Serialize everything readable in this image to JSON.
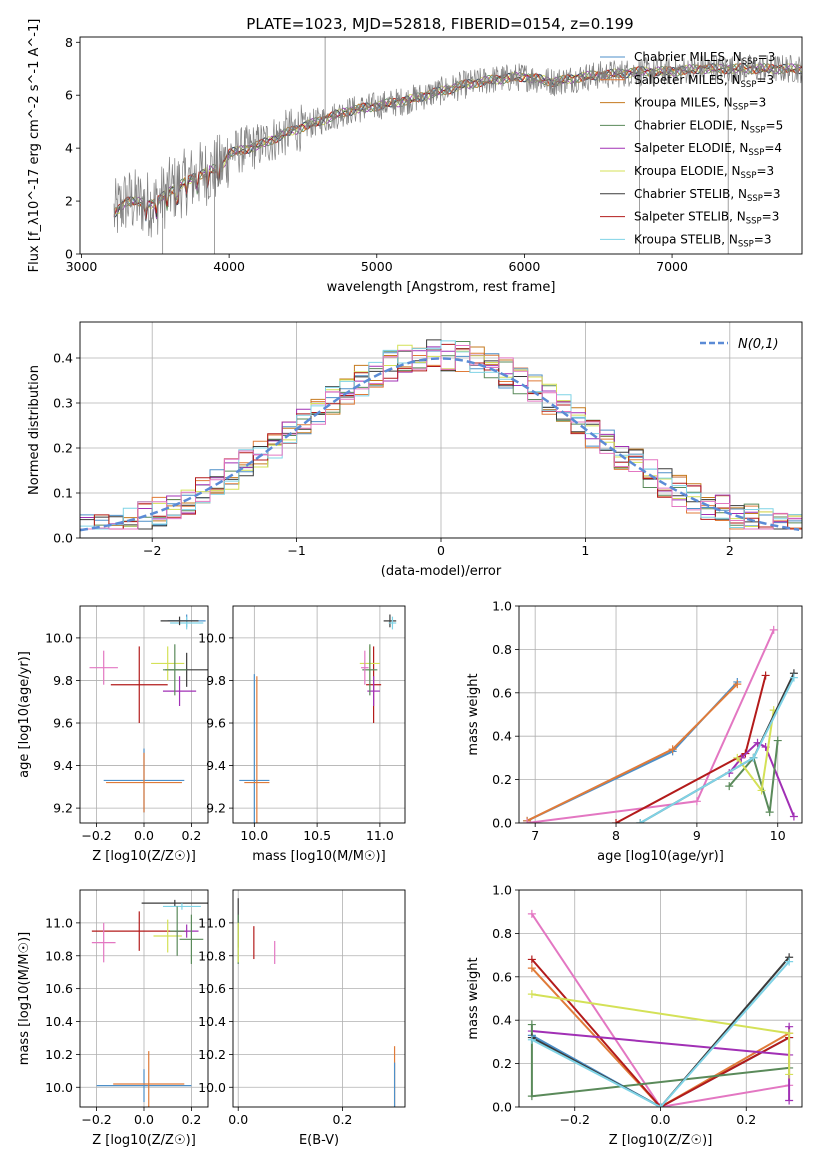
{
  "figure": {
    "title": "PLATE=1023, MJD=52818, FIBERID=0154, z=0.199"
  },
  "series": [
    {
      "name": "Chabrier MILES, N",
      "nssp": "=3",
      "color": "#4d8fc8"
    },
    {
      "name": "Salpeter MILES, N",
      "nssp": "=3",
      "color": "#e07b39"
    },
    {
      "name": "Kroupa MILES, N",
      "nssp": "=3",
      "color": "#c57a1f"
    },
    {
      "name": "Chabrier ELODIE, N",
      "nssp": "=5",
      "color": "#5a8a5a"
    },
    {
      "name": "Salpeter ELODIE, N",
      "nssp": "=4",
      "color": "#a130b5"
    },
    {
      "name": "Kroupa ELODIE, N",
      "nssp": "=3",
      "color": "#d4e157"
    },
    {
      "name": "Chabrier STELIB, N",
      "nssp": "=3",
      "color": "#3a3a3a"
    },
    {
      "name": "Salpeter STELIB, N",
      "nssp": "=3",
      "color": "#b31b1b"
    },
    {
      "name": "Kroupa STELIB, N",
      "nssp": "=3",
      "color": "#7fd3e6"
    }
  ],
  "chart_data": [
    {
      "id": "spectrum",
      "type": "line",
      "xlabel": "wavelength [Angstrom, rest frame]",
      "ylabel": "Flux [f_λ10^-17 erg cm^-2 s^-1 A^-1]",
      "xlim": [
        2990,
        7880
      ],
      "ylim": [
        0,
        8.2
      ],
      "xticks": [
        3000,
        4000,
        5000,
        6000,
        7000
      ],
      "yticks": [
        0,
        2,
        4,
        6,
        8
      ],
      "grid": false,
      "legend": "right",
      "data_color": "#808080",
      "anchors": [
        [
          3220,
          1.5
        ],
        [
          3300,
          2.0
        ],
        [
          3500,
          1.9
        ],
        [
          3600,
          2.4
        ],
        [
          3800,
          3.0
        ],
        [
          3950,
          3.3
        ],
        [
          4000,
          3.8
        ],
        [
          4200,
          4.1
        ],
        [
          4400,
          4.6
        ],
        [
          4600,
          5.0
        ],
        [
          4800,
          5.4
        ],
        [
          5000,
          5.6
        ],
        [
          5200,
          5.8
        ],
        [
          5400,
          6.1
        ],
        [
          5600,
          6.4
        ],
        [
          5800,
          6.6
        ],
        [
          6000,
          6.7
        ],
        [
          6200,
          6.5
        ],
        [
          6400,
          6.7
        ],
        [
          6600,
          6.8
        ],
        [
          6800,
          6.9
        ],
        [
          7000,
          6.9
        ],
        [
          7200,
          7.0
        ],
        [
          7400,
          7.0
        ],
        [
          7880,
          7.0
        ]
      ]
    },
    {
      "id": "residuals",
      "type": "histogram",
      "xlabel": "(data-model)/error",
      "ylabel": "Normed distribution",
      "xlim": [
        -2.5,
        2.5
      ],
      "ylim": [
        0,
        0.48
      ],
      "xticks": [
        -2,
        -1,
        0,
        1,
        2
      ],
      "yticks": [
        0.0,
        0.1,
        0.2,
        0.3,
        0.4
      ],
      "grid": true,
      "legend": "top-right",
      "bin_width": 0.1,
      "ref_label": "N(0,1)",
      "ref_color": "#5b8bd6"
    },
    {
      "id": "age_vs_Z",
      "type": "errorbar",
      "xlabel": "Z [log10(Z/Z☉)]",
      "ylabel": "age [log10(age/yr)]",
      "xlim": [
        -0.27,
        0.27
      ],
      "ylim": [
        9.13,
        10.15
      ],
      "xticks": [
        -0.2,
        0.0,
        0.2
      ],
      "yticks": [
        9.2,
        9.4,
        9.6,
        9.8,
        10.0
      ],
      "grid": true,
      "points": [
        {
          "s": 0,
          "x": 0.0,
          "y": 9.33,
          "xe": 0.17,
          "ye": 0.15
        },
        {
          "s": 1,
          "x": 0.0,
          "y": 9.32,
          "xe": 0.16,
          "ye": 0.14
        },
        {
          "s": 0,
          "x": 0.18,
          "y": 10.08,
          "xe": 0.08,
          "ye": 0.03
        },
        {
          "s": 8,
          "x": 0.18,
          "y": 10.07,
          "xe": 0.07,
          "ye": 0.03
        },
        {
          "s": 6,
          "x": 0.15,
          "y": 10.08,
          "xe": 0.08,
          "ye": 0.02
        },
        {
          "s": 7,
          "x": -0.02,
          "y": 9.78,
          "xe": 0.12,
          "ye": 0.18
        },
        {
          "s": 4,
          "x": 0.15,
          "y": 9.75,
          "xe": 0.07,
          "ye": 0.07
        },
        {
          "s": 6,
          "x": 0.18,
          "y": 9.85,
          "xe": 0.09,
          "ye": 0.08
        },
        {
          "s": 5,
          "x": 0.1,
          "y": 9.88,
          "xe": 0.07,
          "ye": 0.08
        },
        {
          "s": 3,
          "x": 0.13,
          "y": 9.85,
          "xe": 0.05,
          "ye": 0.12
        },
        {
          "s": "pink",
          "x": -0.17,
          "y": 9.86,
          "xe": 0.06,
          "ye": 0.08
        }
      ]
    },
    {
      "id": "age_vs_mass",
      "type": "errorbar",
      "xlabel": "mass [log10(M/M☉)]",
      "ylabel": "",
      "xlim": [
        9.83,
        11.2
      ],
      "ylim": [
        9.13,
        10.15
      ],
      "xticks": [
        10.0,
        10.5,
        11.0
      ],
      "yticks": [
        9.2,
        9.4,
        9.6,
        9.8,
        10.0
      ],
      "grid": true,
      "points": [
        {
          "s": 0,
          "x": 10.0,
          "y": 9.33,
          "xe": 0.12,
          "ye": 0.5
        },
        {
          "s": 1,
          "x": 10.02,
          "y": 9.32,
          "xe": 0.1,
          "ye": 0.5
        },
        {
          "s": 6,
          "x": 11.08,
          "y": 10.08,
          "xe": 0.05,
          "ye": 0.03
        },
        {
          "s": 8,
          "x": 11.1,
          "y": 10.07,
          "xe": 0.03,
          "ye": 0.03
        },
        {
          "s": 7,
          "x": 10.95,
          "y": 9.78,
          "xe": 0.06,
          "ye": 0.18
        },
        {
          "s": 4,
          "x": 10.95,
          "y": 9.75,
          "xe": 0.05,
          "ye": 0.07
        },
        {
          "s": 5,
          "x": 10.92,
          "y": 9.88,
          "xe": 0.08,
          "ye": 0.08
        },
        {
          "s": 3,
          "x": 10.92,
          "y": 9.85,
          "xe": 0.06,
          "ye": 0.12
        },
        {
          "s": "pink",
          "x": 10.88,
          "y": 9.86,
          "xe": 0.03,
          "ye": 0.08
        }
      ]
    },
    {
      "id": "weight_vs_age",
      "type": "line",
      "xlabel": "age [log10(age/yr)]",
      "ylabel": "mass weight",
      "xlim": [
        6.8,
        10.3
      ],
      "ylim": [
        0,
        1.0
      ],
      "xticks": [
        7,
        8,
        9,
        10
      ],
      "yticks": [
        0.0,
        0.2,
        0.4,
        0.6,
        0.8,
        1.0
      ],
      "grid": true,
      "lines": [
        {
          "s": 0,
          "pts": [
            [
              6.9,
              0.01
            ],
            [
              8.7,
              0.33
            ],
            [
              9.5,
              0.65
            ]
          ]
        },
        {
          "s": 1,
          "pts": [
            [
              6.9,
              0.01
            ],
            [
              8.7,
              0.34
            ],
            [
              9.5,
              0.64
            ]
          ]
        },
        {
          "s": "pink",
          "pts": [
            [
              6.9,
              0.0
            ],
            [
              9.0,
              0.1
            ],
            [
              9.95,
              0.89
            ]
          ]
        },
        {
          "s": 7,
          "pts": [
            [
              8.0,
              0.0
            ],
            [
              9.6,
              0.32
            ],
            [
              9.85,
              0.68
            ]
          ]
        },
        {
          "s": 4,
          "pts": [
            [
              9.4,
              0.23
            ],
            [
              9.55,
              0.3
            ],
            [
              9.75,
              0.37
            ],
            [
              9.85,
              0.35
            ],
            [
              10.2,
              0.03
            ]
          ]
        },
        {
          "s": 3,
          "pts": [
            [
              9.4,
              0.17
            ],
            [
              9.7,
              0.3
            ],
            [
              9.9,
              0.05
            ],
            [
              10.0,
              0.38
            ]
          ]
        },
        {
          "s": 5,
          "pts": [
            [
              9.5,
              0.3
            ],
            [
              9.8,
              0.15
            ],
            [
              9.95,
              0.52
            ]
          ]
        },
        {
          "s": 6,
          "pts": [
            [
              8.3,
              0.0
            ],
            [
              9.7,
              0.3
            ],
            [
              10.2,
              0.69
            ]
          ]
        },
        {
          "s": 8,
          "pts": [
            [
              8.3,
              0.0
            ],
            [
              9.7,
              0.3
            ],
            [
              10.2,
              0.67
            ]
          ]
        }
      ]
    },
    {
      "id": "mass_vs_Z",
      "type": "errorbar",
      "xlabel": "Z [log10(Z/Z☉)]",
      "ylabel": "mass [log10(M/M☉)]",
      "xlim": [
        -0.27,
        0.27
      ],
      "ylim": [
        9.88,
        11.2
      ],
      "xticks": [
        -0.2,
        0.0,
        0.2
      ],
      "yticks": [
        10.0,
        10.2,
        10.4,
        10.6,
        10.8,
        11.0
      ],
      "grid": true,
      "points": [
        {
          "s": 0,
          "x": 0.0,
          "y": 10.01,
          "xe": 0.2,
          "ye": 0.1
        },
        {
          "s": 1,
          "x": 0.02,
          "y": 10.02,
          "xe": 0.15,
          "ye": 0.2
        },
        {
          "s": 6,
          "x": 0.13,
          "y": 11.12,
          "xe": 0.14,
          "ye": 0.02
        },
        {
          "s": 8,
          "x": 0.16,
          "y": 11.1,
          "xe": 0.08,
          "ye": 0.02
        },
        {
          "s": 7,
          "x": -0.02,
          "y": 10.95,
          "xe": 0.2,
          "ye": 0.12
        },
        {
          "s": 4,
          "x": 0.18,
          "y": 10.95,
          "xe": 0.05,
          "ye": 0.04
        },
        {
          "s": 5,
          "x": 0.1,
          "y": 10.92,
          "xe": 0.06,
          "ye": 0.1
        },
        {
          "s": 3,
          "x": 0.2,
          "y": 10.9,
          "xe": 0.05,
          "ye": 0.15
        },
        {
          "s": "pink",
          "x": -0.17,
          "y": 10.88,
          "xe": 0.05,
          "ye": 0.12
        },
        {
          "s": 3,
          "x": 0.14,
          "y": 10.95,
          "xe": 0.03,
          "ye": 0.15
        }
      ]
    },
    {
      "id": "mass_vs_ebv",
      "type": "errorbar",
      "xlabel": "E(B-V)",
      "ylabel": "",
      "xlim": [
        -0.01,
        0.32
      ],
      "ylim": [
        9.88,
        11.2
      ],
      "xticks": [
        0.0,
        0.2
      ],
      "yticks": [
        10.0,
        10.2,
        10.4,
        10.6,
        10.8,
        11.0
      ],
      "grid": true,
      "points": [
        {
          "s": 1,
          "x": 0.3,
          "y": 10.05,
          "xe": 0.0,
          "ye": 0.2
        },
        {
          "s": 0,
          "x": 0.3,
          "y": 10.01,
          "xe": 0.0,
          "ye": 0.14
        },
        {
          "s": 6,
          "x": 0.0,
          "y": 11.0,
          "xe": 0.0,
          "ye": 0.15
        },
        {
          "s": 3,
          "x": 0.0,
          "y": 10.9,
          "xe": 0.0,
          "ye": 0.15
        },
        {
          "s": 5,
          "x": 0.0,
          "y": 10.88,
          "xe": 0.0,
          "ye": 0.12
        },
        {
          "s": 7,
          "x": 0.03,
          "y": 10.88,
          "xe": 0.0,
          "ye": 0.1
        },
        {
          "s": "pink",
          "x": 0.07,
          "y": 10.82,
          "xe": 0.0,
          "ye": 0.07
        }
      ]
    },
    {
      "id": "weight_vs_Z",
      "type": "line",
      "xlabel": "Z [log10(Z/Z☉)]",
      "ylabel": "mass weight",
      "xlim": [
        -0.33,
        0.33
      ],
      "ylim": [
        0,
        1.0
      ],
      "xticks": [
        -0.2,
        0.0,
        0.2
      ],
      "yticks": [
        0.0,
        0.2,
        0.4,
        0.6,
        0.8,
        1.0
      ],
      "grid": true,
      "lines": [
        {
          "s": 0,
          "pts": [
            [
              -0.3,
              0.33
            ],
            [
              0.0,
              0.0
            ],
            [
              0.3,
              0.32
            ]
          ]
        },
        {
          "s": 1,
          "pts": [
            [
              -0.3,
              0.64
            ],
            [
              0.0,
              0.0
            ],
            [
              0.3,
              0.34
            ]
          ]
        },
        {
          "s": "pink",
          "pts": [
            [
              -0.3,
              0.89
            ],
            [
              0.0,
              0.0
            ],
            [
              0.3,
              0.1
            ]
          ]
        },
        {
          "s": 7,
          "pts": [
            [
              -0.3,
              0.68
            ],
            [
              0.0,
              0.0
            ],
            [
              0.3,
              0.32
            ]
          ]
        },
        {
          "s": 4,
          "pts": [
            [
              -0.3,
              0.35
            ],
            [
              0.3,
              0.24
            ],
            [
              0.3,
              0.37
            ],
            [
              0.3,
              0.03
            ]
          ]
        },
        {
          "s": 3,
          "pts": [
            [
              -0.3,
              0.38
            ],
            [
              -0.3,
              0.05
            ],
            [
              0.3,
              0.18
            ]
          ]
        },
        {
          "s": 5,
          "pts": [
            [
              -0.3,
              0.52
            ],
            [
              0.3,
              0.34
            ],
            [
              0.3,
              0.15
            ]
          ]
        },
        {
          "s": 6,
          "pts": [
            [
              -0.3,
              0.32
            ],
            [
              0.0,
              0.0
            ],
            [
              0.3,
              0.69
            ]
          ]
        },
        {
          "s": 8,
          "pts": [
            [
              -0.3,
              0.31
            ],
            [
              0.0,
              0.0
            ],
            [
              0.3,
              0.67
            ]
          ]
        }
      ]
    }
  ]
}
